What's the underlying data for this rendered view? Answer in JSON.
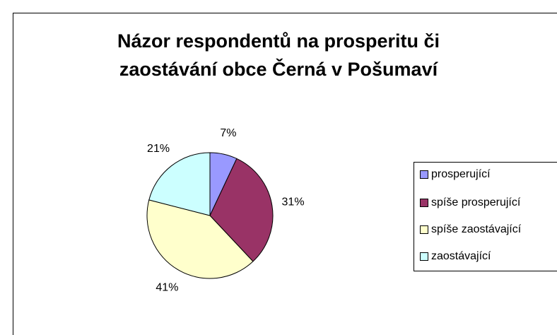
{
  "chart_data": {
    "type": "pie",
    "title": "Názor respondentů na prosperitu či zaostávání obce Černá v Pošumaví",
    "categories": [
      "prosperující",
      "spíše prosperující",
      "spíše zaostávající",
      "zaostávající"
    ],
    "values": [
      7,
      31,
      41,
      21
    ],
    "value_labels": [
      "7%",
      "31%",
      "41%",
      "21%"
    ],
    "colors": [
      "#9999ff",
      "#993366",
      "#ffffcc",
      "#ccffff"
    ],
    "legend": "right"
  }
}
